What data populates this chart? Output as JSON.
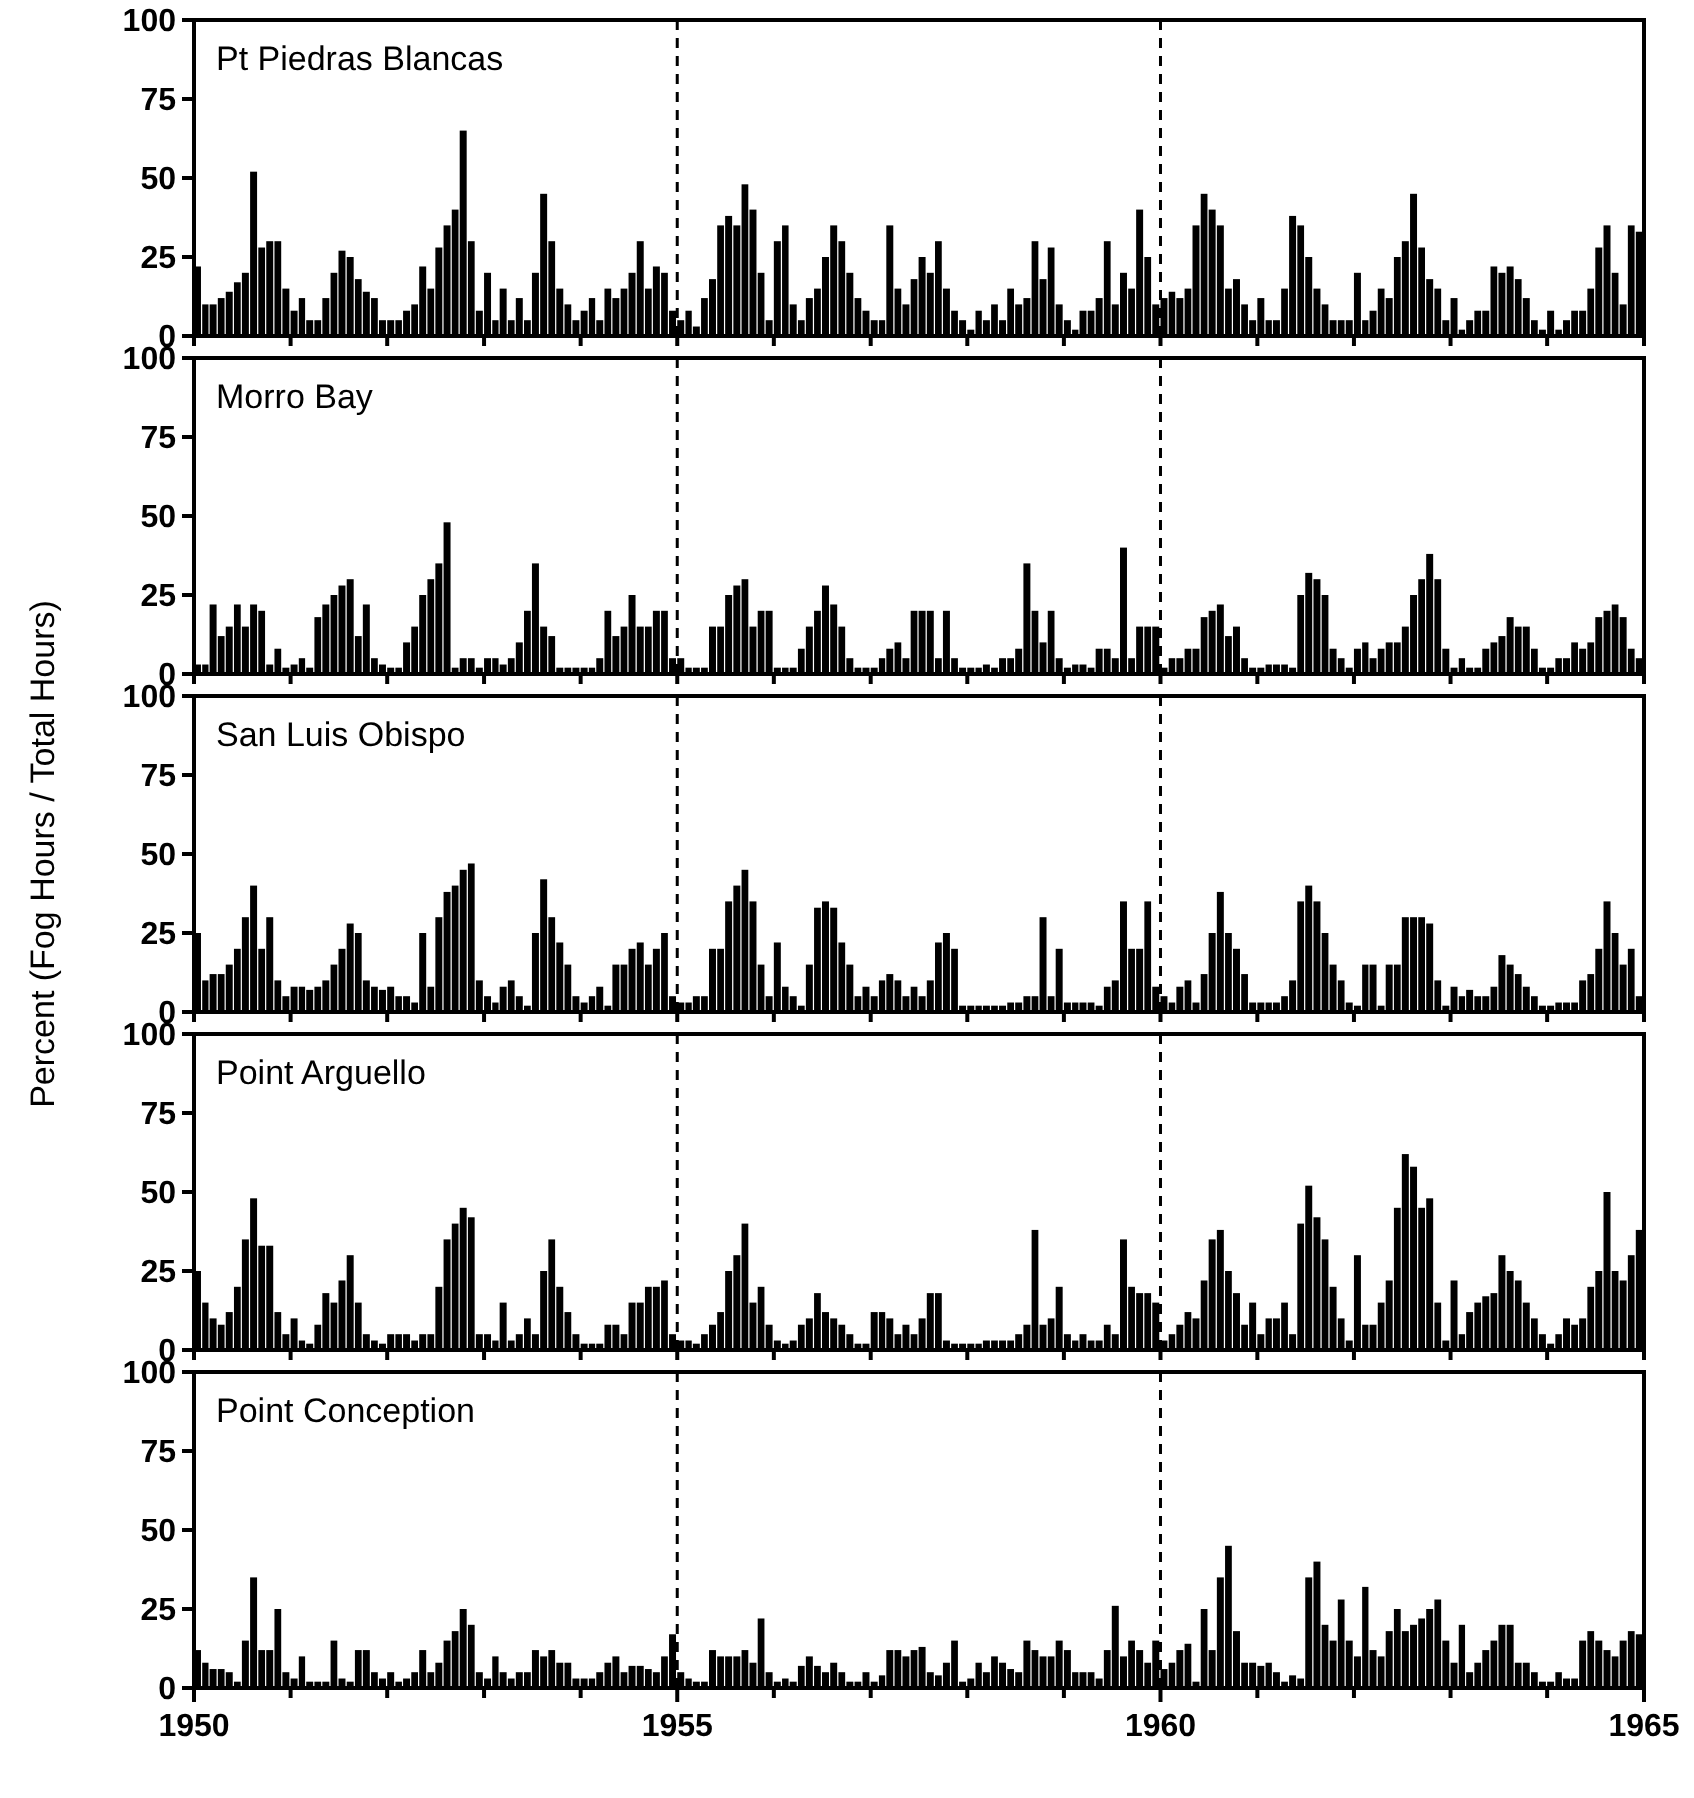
{
  "chart_data": [
    {
      "type": "bar",
      "title": "Pt Piedras Blancas",
      "x": [
        "1950-01",
        "1950-02",
        "1950-03",
        "1950-04",
        "1950-05",
        "1950-06",
        "1950-07",
        "1950-08",
        "1950-09",
        "1950-10",
        "1950-11",
        "1950-12",
        "1951-01",
        "1951-02",
        "1951-03",
        "1951-04",
        "1951-05",
        "1951-06",
        "1951-07",
        "1951-08",
        "1951-09",
        "1951-10",
        "1951-11",
        "1951-12",
        "1952-01",
        "1952-02",
        "1952-03",
        "1952-04",
        "1952-05",
        "1952-06",
        "1952-07",
        "1952-08",
        "1952-09",
        "1952-10",
        "1952-11",
        "1952-12",
        "1953-01",
        "1953-02",
        "1953-03",
        "1953-04",
        "1953-05",
        "1953-06",
        "1953-07",
        "1953-08",
        "1953-09",
        "1953-10",
        "1953-11",
        "1953-12",
        "1954-01",
        "1954-02",
        "1954-03",
        "1954-04",
        "1954-05",
        "1954-06",
        "1954-07",
        "1954-08",
        "1954-09",
        "1954-10",
        "1954-11",
        "1954-12",
        "1955-01",
        "1955-02",
        "1955-03",
        "1955-04",
        "1955-05",
        "1955-06",
        "1955-07",
        "1955-08",
        "1955-09",
        "1955-10",
        "1955-11",
        "1955-12",
        "1956-01",
        "1956-02",
        "1956-03",
        "1956-04",
        "1956-05",
        "1956-06",
        "1956-07",
        "1956-08",
        "1956-09",
        "1956-10",
        "1956-11",
        "1956-12",
        "1957-01",
        "1957-02",
        "1957-03",
        "1957-04",
        "1957-05",
        "1957-06",
        "1957-07",
        "1957-08",
        "1957-09",
        "1957-10",
        "1957-11",
        "1957-12",
        "1958-01",
        "1958-02",
        "1958-03",
        "1958-04",
        "1958-05",
        "1958-06",
        "1958-07",
        "1958-08",
        "1958-09",
        "1958-10",
        "1958-11",
        "1958-12",
        "1959-01",
        "1959-02",
        "1959-03",
        "1959-04",
        "1959-05",
        "1959-06",
        "1959-07",
        "1959-08",
        "1959-09",
        "1959-10",
        "1959-11",
        "1959-12",
        "1960-01",
        "1960-02",
        "1960-03",
        "1960-04",
        "1960-05",
        "1960-06",
        "1960-07",
        "1960-08",
        "1960-09",
        "1960-10",
        "1960-11",
        "1960-12",
        "1961-01",
        "1961-02",
        "1961-03",
        "1961-04",
        "1961-05",
        "1961-06",
        "1961-07",
        "1961-08",
        "1961-09",
        "1961-10",
        "1961-11",
        "1961-12",
        "1962-01",
        "1962-02",
        "1962-03",
        "1962-04",
        "1962-05",
        "1962-06",
        "1962-07",
        "1962-08",
        "1962-09",
        "1962-10",
        "1962-11",
        "1962-12",
        "1963-01",
        "1963-02",
        "1963-03",
        "1963-04",
        "1963-05",
        "1963-06",
        "1963-07",
        "1963-08",
        "1963-09",
        "1963-10",
        "1963-11",
        "1963-12",
        "1964-01",
        "1964-02",
        "1964-03",
        "1964-04",
        "1964-05",
        "1964-06",
        "1964-07",
        "1964-08",
        "1964-09",
        "1964-10",
        "1964-11",
        "1964-12"
      ],
      "values": [
        22,
        10,
        10,
        12,
        14,
        17,
        20,
        52,
        28,
        30,
        30,
        15,
        8,
        12,
        5,
        5,
        12,
        20,
        27,
        25,
        18,
        14,
        12,
        5,
        5,
        5,
        8,
        10,
        22,
        15,
        28,
        35,
        40,
        65,
        30,
        8,
        20,
        5,
        15,
        5,
        12,
        5,
        20,
        45,
        30,
        15,
        10,
        5,
        8,
        12,
        5,
        15,
        12,
        15,
        20,
        30,
        15,
        22,
        20,
        8,
        5,
        8,
        3,
        12,
        18,
        35,
        38,
        35,
        48,
        40,
        20,
        5,
        30,
        35,
        10,
        5,
        12,
        15,
        25,
        35,
        30,
        20,
        12,
        8,
        5,
        5,
        35,
        15,
        10,
        18,
        25,
        20,
        30,
        15,
        8,
        5,
        2,
        8,
        5,
        10,
        5,
        15,
        10,
        12,
        30,
        18,
        28,
        10,
        5,
        2,
        8,
        8,
        12,
        30,
        10,
        20,
        15,
        40,
        25,
        10,
        12,
        14,
        12,
        15,
        35,
        45,
        40,
        35,
        15,
        18,
        10,
        5,
        12,
        5,
        5,
        15,
        38,
        35,
        25,
        15,
        10,
        5,
        5,
        5,
        20,
        5,
        8,
        15,
        12,
        25,
        30,
        45,
        28,
        18,
        15,
        5,
        12,
        2,
        5,
        8,
        8,
        22,
        20,
        22,
        18,
        12,
        5,
        2,
        8,
        2,
        5,
        8,
        8,
        15,
        28,
        35,
        20,
        10,
        35,
        33
      ],
      "color": "#000000",
      "xlim": [
        "1950-01",
        "1965-01"
      ],
      "xticks": [
        {
          "value": "1950",
          "label": null
        },
        {
          "value": "1951",
          "label": null
        },
        {
          "value": "1952",
          "label": null
        },
        {
          "value": "1953",
          "label": null
        },
        {
          "value": "1954",
          "label": null
        },
        {
          "value": "1955",
          "label": null
        },
        {
          "value": "1956",
          "label": null
        },
        {
          "value": "1957",
          "label": null
        },
        {
          "value": "1958",
          "label": null
        },
        {
          "value": "1959",
          "label": null
        },
        {
          "value": "1960",
          "label": null
        },
        {
          "value": "1961",
          "label": null
        },
        {
          "value": "1962",
          "label": null
        },
        {
          "value": "1963",
          "label": null
        },
        {
          "value": "1964",
          "label": null
        },
        {
          "value": "1965",
          "label": null
        }
      ],
      "ylim": [
        0,
        100
      ],
      "yticks": [
        0,
        25,
        50,
        75,
        100
      ],
      "tick_labels": "y",
      "ref_lines": [
        {
          "axis": "x",
          "value": "1955",
          "line_style": "dashed"
        },
        {
          "axis": "x",
          "value": "1960",
          "line_style": "dashed"
        }
      ]
    },
    {
      "type": "bar",
      "title": "Morro Bay",
      "x": [
        "1950-01",
        "1950-02",
        "1950-03",
        "1950-04",
        "1950-05",
        "1950-06",
        "1950-07",
        "1950-08",
        "1950-09",
        "1950-10",
        "1950-11",
        "1950-12",
        "1951-01",
        "1951-02",
        "1951-03",
        "1951-04",
        "1951-05",
        "1951-06",
        "1951-07",
        "1951-08",
        "1951-09",
        "1951-10",
        "1951-11",
        "1951-12",
        "1952-01",
        "1952-02",
        "1952-03",
        "1952-04",
        "1952-05",
        "1952-06",
        "1952-07",
        "1952-08",
        "1952-09",
        "1952-10",
        "1952-11",
        "1952-12",
        "1953-01",
        "1953-02",
        "1953-03",
        "1953-04",
        "1953-05",
        "1953-06",
        "1953-07",
        "1953-08",
        "1953-09",
        "1953-10",
        "1953-11",
        "1953-12",
        "1954-01",
        "1954-02",
        "1954-03",
        "1954-04",
        "1954-05",
        "1954-06",
        "1954-07",
        "1954-08",
        "1954-09",
        "1954-10",
        "1954-11",
        "1954-12",
        "1955-01",
        "1955-02",
        "1955-03",
        "1955-04",
        "1955-05",
        "1955-06",
        "1955-07",
        "1955-08",
        "1955-09",
        "1955-10",
        "1955-11",
        "1955-12",
        "1956-01",
        "1956-02",
        "1956-03",
        "1956-04",
        "1956-05",
        "1956-06",
        "1956-07",
        "1956-08",
        "1956-09",
        "1956-10",
        "1956-11",
        "1956-12",
        "1957-01",
        "1957-02",
        "1957-03",
        "1957-04",
        "1957-05",
        "1957-06",
        "1957-07",
        "1957-08",
        "1957-09",
        "1957-10",
        "1957-11",
        "1957-12",
        "1958-01",
        "1958-02",
        "1958-03",
        "1958-04",
        "1958-05",
        "1958-06",
        "1958-07",
        "1958-08",
        "1958-09",
        "1958-10",
        "1958-11",
        "1958-12",
        "1959-01",
        "1959-02",
        "1959-03",
        "1959-04",
        "1959-05",
        "1959-06",
        "1959-07",
        "1959-08",
        "1959-09",
        "1959-10",
        "1959-11",
        "1959-12",
        "1960-01",
        "1960-02",
        "1960-03",
        "1960-04",
        "1960-05",
        "1960-06",
        "1960-07",
        "1960-08",
        "1960-09",
        "1960-10",
        "1960-11",
        "1960-12",
        "1961-01",
        "1961-02",
        "1961-03",
        "1961-04",
        "1961-05",
        "1961-06",
        "1961-07",
        "1961-08",
        "1961-09",
        "1961-10",
        "1961-11",
        "1961-12",
        "1962-01",
        "1962-02",
        "1962-03",
        "1962-04",
        "1962-05",
        "1962-06",
        "1962-07",
        "1962-08",
        "1962-09",
        "1962-10",
        "1962-11",
        "1962-12",
        "1963-01",
        "1963-02",
        "1963-03",
        "1963-04",
        "1963-05",
        "1963-06",
        "1963-07",
        "1963-08",
        "1963-09",
        "1963-10",
        "1963-11",
        "1963-12",
        "1964-01",
        "1964-02",
        "1964-03",
        "1964-04",
        "1964-05",
        "1964-06",
        "1964-07",
        "1964-08",
        "1964-09",
        "1964-10",
        "1964-11",
        "1964-12"
      ],
      "values": [
        3,
        3,
        22,
        12,
        15,
        22,
        15,
        22,
        20,
        3,
        8,
        2,
        3,
        5,
        2,
        18,
        22,
        25,
        28,
        30,
        12,
        22,
        5,
        3,
        2,
        2,
        10,
        15,
        25,
        30,
        35,
        48,
        2,
        5,
        5,
        2,
        5,
        5,
        3,
        5,
        10,
        20,
        35,
        15,
        12,
        2,
        2,
        2,
        2,
        2,
        5,
        20,
        12,
        15,
        25,
        15,
        15,
        20,
        20,
        5,
        5,
        2,
        2,
        2,
        15,
        15,
        25,
        28,
        30,
        15,
        20,
        20,
        2,
        2,
        2,
        8,
        15,
        20,
        28,
        22,
        15,
        5,
        2,
        2,
        2,
        5,
        8,
        10,
        5,
        20,
        20,
        20,
        5,
        20,
        5,
        2,
        2,
        2,
        3,
        2,
        5,
        5,
        8,
        35,
        20,
        10,
        20,
        5,
        2,
        3,
        3,
        2,
        8,
        8,
        5,
        40,
        5,
        15,
        15,
        15,
        2,
        5,
        5,
        8,
        8,
        18,
        20,
        22,
        12,
        15,
        5,
        2,
        2,
        3,
        3,
        3,
        2,
        25,
        32,
        30,
        25,
        8,
        5,
        2,
        8,
        10,
        5,
        8,
        10,
        10,
        15,
        25,
        30,
        38,
        30,
        8,
        2,
        5,
        2,
        2,
        8,
        10,
        12,
        18,
        15,
        15,
        8,
        2,
        2,
        5,
        5,
        10,
        8,
        10,
        18,
        20,
        22,
        18,
        8,
        5
      ],
      "color": "#000000",
      "xlim": [
        "1950-01",
        "1965-01"
      ],
      "xticks": [
        {
          "value": "1950",
          "label": null
        },
        {
          "value": "1951",
          "label": null
        },
        {
          "value": "1952",
          "label": null
        },
        {
          "value": "1953",
          "label": null
        },
        {
          "value": "1954",
          "label": null
        },
        {
          "value": "1955",
          "label": null
        },
        {
          "value": "1956",
          "label": null
        },
        {
          "value": "1957",
          "label": null
        },
        {
          "value": "1958",
          "label": null
        },
        {
          "value": "1959",
          "label": null
        },
        {
          "value": "1960",
          "label": null
        },
        {
          "value": "1961",
          "label": null
        },
        {
          "value": "1962",
          "label": null
        },
        {
          "value": "1963",
          "label": null
        },
        {
          "value": "1964",
          "label": null
        },
        {
          "value": "1965",
          "label": null
        }
      ],
      "ylim": [
        0,
        100
      ],
      "yticks": [
        0,
        25,
        50,
        75,
        100
      ],
      "tick_labels": "y",
      "ref_lines": [
        {
          "axis": "x",
          "value": "1955",
          "line_style": "dashed"
        },
        {
          "axis": "x",
          "value": "1960",
          "line_style": "dashed"
        }
      ]
    },
    {
      "type": "bar",
      "title": "San Luis Obispo",
      "ylabel": "Percent (Fog Hours / Total Hours)",
      "x": [
        "1950-01",
        "1950-02",
        "1950-03",
        "1950-04",
        "1950-05",
        "1950-06",
        "1950-07",
        "1950-08",
        "1950-09",
        "1950-10",
        "1950-11",
        "1950-12",
        "1951-01",
        "1951-02",
        "1951-03",
        "1951-04",
        "1951-05",
        "1951-06",
        "1951-07",
        "1951-08",
        "1951-09",
        "1951-10",
        "1951-11",
        "1951-12",
        "1952-01",
        "1952-02",
        "1952-03",
        "1952-04",
        "1952-05",
        "1952-06",
        "1952-07",
        "1952-08",
        "1952-09",
        "1952-10",
        "1952-11",
        "1952-12",
        "1953-01",
        "1953-02",
        "1953-03",
        "1953-04",
        "1953-05",
        "1953-06",
        "1953-07",
        "1953-08",
        "1953-09",
        "1953-10",
        "1953-11",
        "1953-12",
        "1954-01",
        "1954-02",
        "1954-03",
        "1954-04",
        "1954-05",
        "1954-06",
        "1954-07",
        "1954-08",
        "1954-09",
        "1954-10",
        "1954-11",
        "1954-12",
        "1955-01",
        "1955-02",
        "1955-03",
        "1955-04",
        "1955-05",
        "1955-06",
        "1955-07",
        "1955-08",
        "1955-09",
        "1955-10",
        "1955-11",
        "1955-12",
        "1956-01",
        "1956-02",
        "1956-03",
        "1956-04",
        "1956-05",
        "1956-06",
        "1956-07",
        "1956-08",
        "1956-09",
        "1956-10",
        "1956-11",
        "1956-12",
        "1957-01",
        "1957-02",
        "1957-03",
        "1957-04",
        "1957-05",
        "1957-06",
        "1957-07",
        "1957-08",
        "1957-09",
        "1957-10",
        "1957-11",
        "1957-12",
        "1958-01",
        "1958-02",
        "1958-03",
        "1958-04",
        "1958-05",
        "1958-06",
        "1958-07",
        "1958-08",
        "1958-09",
        "1958-10",
        "1958-11",
        "1958-12",
        "1959-01",
        "1959-02",
        "1959-03",
        "1959-04",
        "1959-05",
        "1959-06",
        "1959-07",
        "1959-08",
        "1959-09",
        "1959-10",
        "1959-11",
        "1959-12",
        "1960-01",
        "1960-02",
        "1960-03",
        "1960-04",
        "1960-05",
        "1960-06",
        "1960-07",
        "1960-08",
        "1960-09",
        "1960-10",
        "1960-11",
        "1960-12",
        "1961-01",
        "1961-02",
        "1961-03",
        "1961-04",
        "1961-05",
        "1961-06",
        "1961-07",
        "1961-08",
        "1961-09",
        "1961-10",
        "1961-11",
        "1961-12",
        "1962-01",
        "1962-02",
        "1962-03",
        "1962-04",
        "1962-05",
        "1962-06",
        "1962-07",
        "1962-08",
        "1962-09",
        "1962-10",
        "1962-11",
        "1962-12",
        "1963-01",
        "1963-02",
        "1963-03",
        "1963-04",
        "1963-05",
        "1963-06",
        "1963-07",
        "1963-08",
        "1963-09",
        "1963-10",
        "1963-11",
        "1963-12",
        "1964-01",
        "1964-02",
        "1964-03",
        "1964-04",
        "1964-05",
        "1964-06",
        "1964-07",
        "1964-08",
        "1964-09",
        "1964-10",
        "1964-11",
        "1964-12"
      ],
      "values": [
        25,
        10,
        12,
        12,
        15,
        20,
        30,
        40,
        20,
        30,
        10,
        5,
        8,
        8,
        7,
        8,
        10,
        15,
        20,
        28,
        25,
        10,
        8,
        7,
        8,
        5,
        5,
        3,
        25,
        8,
        30,
        38,
        40,
        45,
        47,
        10,
        5,
        3,
        8,
        10,
        5,
        2,
        25,
        42,
        30,
        22,
        15,
        5,
        3,
        5,
        8,
        2,
        15,
        15,
        20,
        22,
        15,
        20,
        25,
        5,
        3,
        3,
        5,
        5,
        20,
        20,
        35,
        40,
        45,
        35,
        15,
        5,
        22,
        8,
        5,
        2,
        15,
        33,
        35,
        33,
        22,
        15,
        5,
        8,
        5,
        10,
        12,
        10,
        5,
        8,
        5,
        10,
        22,
        25,
        20,
        2,
        2,
        2,
        2,
        2,
        2,
        3,
        3,
        5,
        5,
        30,
        5,
        20,
        3,
        3,
        3,
        3,
        2,
        8,
        10,
        35,
        20,
        20,
        35,
        8,
        5,
        3,
        8,
        10,
        3,
        12,
        25,
        38,
        25,
        20,
        12,
        3,
        3,
        3,
        3,
        5,
        10,
        35,
        40,
        35,
        25,
        15,
        10,
        3,
        2,
        15,
        15,
        2,
        15,
        15,
        30,
        30,
        30,
        28,
        10,
        2,
        8,
        5,
        7,
        5,
        5,
        8,
        18,
        15,
        12,
        8,
        5,
        2,
        2,
        3,
        3,
        3,
        10,
        12,
        20,
        35,
        25,
        15,
        20,
        5
      ],
      "color": "#000000",
      "xlim": [
        "1950-01",
        "1965-01"
      ],
      "xticks": [
        {
          "value": "1950",
          "label": null
        },
        {
          "value": "1951",
          "label": null
        },
        {
          "value": "1952",
          "label": null
        },
        {
          "value": "1953",
          "label": null
        },
        {
          "value": "1954",
          "label": null
        },
        {
          "value": "1955",
          "label": null
        },
        {
          "value": "1956",
          "label": null
        },
        {
          "value": "1957",
          "label": null
        },
        {
          "value": "1958",
          "label": null
        },
        {
          "value": "1959",
          "label": null
        },
        {
          "value": "1960",
          "label": null
        },
        {
          "value": "1961",
          "label": null
        },
        {
          "value": "1962",
          "label": null
        },
        {
          "value": "1963",
          "label": null
        },
        {
          "value": "1964",
          "label": null
        },
        {
          "value": "1965",
          "label": null
        }
      ],
      "ylim": [
        0,
        100
      ],
      "yticks": [
        0,
        25,
        50,
        75,
        100
      ],
      "tick_labels": "y",
      "ref_lines": [
        {
          "axis": "x",
          "value": "1955",
          "line_style": "dashed"
        },
        {
          "axis": "x",
          "value": "1960",
          "line_style": "dashed"
        }
      ]
    },
    {
      "type": "bar",
      "title": "Point Arguello",
      "x": [
        "1950-01",
        "1950-02",
        "1950-03",
        "1950-04",
        "1950-05",
        "1950-06",
        "1950-07",
        "1950-08",
        "1950-09",
        "1950-10",
        "1950-11",
        "1950-12",
        "1951-01",
        "1951-02",
        "1951-03",
        "1951-04",
        "1951-05",
        "1951-06",
        "1951-07",
        "1951-08",
        "1951-09",
        "1951-10",
        "1951-11",
        "1951-12",
        "1952-01",
        "1952-02",
        "1952-03",
        "1952-04",
        "1952-05",
        "1952-06",
        "1952-07",
        "1952-08",
        "1952-09",
        "1952-10",
        "1952-11",
        "1952-12",
        "1953-01",
        "1953-02",
        "1953-03",
        "1953-04",
        "1953-05",
        "1953-06",
        "1953-07",
        "1953-08",
        "1953-09",
        "1953-10",
        "1953-11",
        "1953-12",
        "1954-01",
        "1954-02",
        "1954-03",
        "1954-04",
        "1954-05",
        "1954-06",
        "1954-07",
        "1954-08",
        "1954-09",
        "1954-10",
        "1954-11",
        "1954-12",
        "1955-01",
        "1955-02",
        "1955-03",
        "1955-04",
        "1955-05",
        "1955-06",
        "1955-07",
        "1955-08",
        "1955-09",
        "1955-10",
        "1955-11",
        "1955-12",
        "1956-01",
        "1956-02",
        "1956-03",
        "1956-04",
        "1956-05",
        "1956-06",
        "1956-07",
        "1956-08",
        "1956-09",
        "1956-10",
        "1956-11",
        "1956-12",
        "1957-01",
        "1957-02",
        "1957-03",
        "1957-04",
        "1957-05",
        "1957-06",
        "1957-07",
        "1957-08",
        "1957-09",
        "1957-10",
        "1957-11",
        "1957-12",
        "1958-01",
        "1958-02",
        "1958-03",
        "1958-04",
        "1958-05",
        "1958-06",
        "1958-07",
        "1958-08",
        "1958-09",
        "1958-10",
        "1958-11",
        "1958-12",
        "1959-01",
        "1959-02",
        "1959-03",
        "1959-04",
        "1959-05",
        "1959-06",
        "1959-07",
        "1959-08",
        "1959-09",
        "1959-10",
        "1959-11",
        "1959-12",
        "1960-01",
        "1960-02",
        "1960-03",
        "1960-04",
        "1960-05",
        "1960-06",
        "1960-07",
        "1960-08",
        "1960-09",
        "1960-10",
        "1960-11",
        "1960-12",
        "1961-01",
        "1961-02",
        "1961-03",
        "1961-04",
        "1961-05",
        "1961-06",
        "1961-07",
        "1961-08",
        "1961-09",
        "1961-10",
        "1961-11",
        "1961-12",
        "1962-01",
        "1962-02",
        "1962-03",
        "1962-04",
        "1962-05",
        "1962-06",
        "1962-07",
        "1962-08",
        "1962-09",
        "1962-10",
        "1962-11",
        "1962-12",
        "1963-01",
        "1963-02",
        "1963-03",
        "1963-04",
        "1963-05",
        "1963-06",
        "1963-07",
        "1963-08",
        "1963-09",
        "1963-10",
        "1963-11",
        "1963-12",
        "1964-01",
        "1964-02",
        "1964-03",
        "1964-04",
        "1964-05",
        "1964-06",
        "1964-07",
        "1964-08",
        "1964-09",
        "1964-10",
        "1964-11",
        "1964-12"
      ],
      "values": [
        25,
        15,
        10,
        8,
        12,
        20,
        35,
        48,
        33,
        33,
        12,
        5,
        10,
        3,
        2,
        8,
        18,
        15,
        22,
        30,
        15,
        5,
        3,
        2,
        5,
        5,
        5,
        3,
        5,
        5,
        20,
        35,
        40,
        45,
        42,
        5,
        5,
        3,
        15,
        3,
        5,
        10,
        5,
        25,
        35,
        20,
        12,
        5,
        2,
        2,
        2,
        8,
        8,
        5,
        15,
        15,
        20,
        20,
        22,
        5,
        3,
        3,
        2,
        5,
        8,
        12,
        25,
        30,
        40,
        15,
        20,
        8,
        3,
        2,
        3,
        8,
        10,
        18,
        12,
        10,
        8,
        5,
        2,
        2,
        12,
        12,
        10,
        5,
        8,
        5,
        10,
        18,
        18,
        3,
        2,
        2,
        2,
        2,
        3,
        3,
        3,
        3,
        5,
        8,
        38,
        8,
        10,
        20,
        5,
        3,
        5,
        3,
        3,
        8,
        5,
        35,
        20,
        18,
        18,
        15,
        3,
        5,
        8,
        12,
        10,
        22,
        35,
        38,
        25,
        18,
        8,
        15,
        5,
        10,
        10,
        15,
        5,
        40,
        52,
        42,
        35,
        20,
        10,
        3,
        30,
        8,
        8,
        15,
        22,
        45,
        62,
        58,
        45,
        48,
        15,
        3,
        22,
        5,
        12,
        15,
        17,
        18,
        30,
        25,
        22,
        15,
        10,
        5,
        2,
        5,
        10,
        8,
        10,
        20,
        25,
        50,
        25,
        22,
        30,
        38
      ],
      "color": "#000000",
      "xlim": [
        "1950-01",
        "1965-01"
      ],
      "xticks": [
        {
          "value": "1950",
          "label": null
        },
        {
          "value": "1951",
          "label": null
        },
        {
          "value": "1952",
          "label": null
        },
        {
          "value": "1953",
          "label": null
        },
        {
          "value": "1954",
          "label": null
        },
        {
          "value": "1955",
          "label": null
        },
        {
          "value": "1956",
          "label": null
        },
        {
          "value": "1957",
          "label": null
        },
        {
          "value": "1958",
          "label": null
        },
        {
          "value": "1959",
          "label": null
        },
        {
          "value": "1960",
          "label": null
        },
        {
          "value": "1961",
          "label": null
        },
        {
          "value": "1962",
          "label": null
        },
        {
          "value": "1963",
          "label": null
        },
        {
          "value": "1964",
          "label": null
        },
        {
          "value": "1965",
          "label": null
        }
      ],
      "ylim": [
        0,
        100
      ],
      "yticks": [
        0,
        25,
        50,
        75,
        100
      ],
      "tick_labels": "y",
      "ref_lines": [
        {
          "axis": "x",
          "value": "1955",
          "line_style": "dashed"
        },
        {
          "axis": "x",
          "value": "1960",
          "line_style": "dashed"
        }
      ]
    },
    {
      "type": "bar",
      "title": "Point Conception",
      "x": [
        "1950-01",
        "1950-02",
        "1950-03",
        "1950-04",
        "1950-05",
        "1950-06",
        "1950-07",
        "1950-08",
        "1950-09",
        "1950-10",
        "1950-11",
        "1950-12",
        "1951-01",
        "1951-02",
        "1951-03",
        "1951-04",
        "1951-05",
        "1951-06",
        "1951-07",
        "1951-08",
        "1951-09",
        "1951-10",
        "1951-11",
        "1951-12",
        "1952-01",
        "1952-02",
        "1952-03",
        "1952-04",
        "1952-05",
        "1952-06",
        "1952-07",
        "1952-08",
        "1952-09",
        "1952-10",
        "1952-11",
        "1952-12",
        "1953-01",
        "1953-02",
        "1953-03",
        "1953-04",
        "1953-05",
        "1953-06",
        "1953-07",
        "1953-08",
        "1953-09",
        "1953-10",
        "1953-11",
        "1953-12",
        "1954-01",
        "1954-02",
        "1954-03",
        "1954-04",
        "1954-05",
        "1954-06",
        "1954-07",
        "1954-08",
        "1954-09",
        "1954-10",
        "1954-11",
        "1954-12",
        "1955-01",
        "1955-02",
        "1955-03",
        "1955-04",
        "1955-05",
        "1955-06",
        "1955-07",
        "1955-08",
        "1955-09",
        "1955-10",
        "1955-11",
        "1955-12",
        "1956-01",
        "1956-02",
        "1956-03",
        "1956-04",
        "1956-05",
        "1956-06",
        "1956-07",
        "1956-08",
        "1956-09",
        "1956-10",
        "1956-11",
        "1956-12",
        "1957-01",
        "1957-02",
        "1957-03",
        "1957-04",
        "1957-05",
        "1957-06",
        "1957-07",
        "1957-08",
        "1957-09",
        "1957-10",
        "1957-11",
        "1957-12",
        "1958-01",
        "1958-02",
        "1958-03",
        "1958-04",
        "1958-05",
        "1958-06",
        "1958-07",
        "1958-08",
        "1958-09",
        "1958-10",
        "1958-11",
        "1958-12",
        "1959-01",
        "1959-02",
        "1959-03",
        "1959-04",
        "1959-05",
        "1959-06",
        "1959-07",
        "1959-08",
        "1959-09",
        "1959-10",
        "1959-11",
        "1959-12",
        "1960-01",
        "1960-02",
        "1960-03",
        "1960-04",
        "1960-05",
        "1960-06",
        "1960-07",
        "1960-08",
        "1960-09",
        "1960-10",
        "1960-11",
        "1960-12",
        "1961-01",
        "1961-02",
        "1961-03",
        "1961-04",
        "1961-05",
        "1961-06",
        "1961-07",
        "1961-08",
        "1961-09",
        "1961-10",
        "1961-11",
        "1961-12",
        "1962-01",
        "1962-02",
        "1962-03",
        "1962-04",
        "1962-05",
        "1962-06",
        "1962-07",
        "1962-08",
        "1962-09",
        "1962-10",
        "1962-11",
        "1962-12",
        "1963-01",
        "1963-02",
        "1963-03",
        "1963-04",
        "1963-05",
        "1963-06",
        "1963-07",
        "1963-08",
        "1963-09",
        "1963-10",
        "1963-11",
        "1963-12",
        "1964-01",
        "1964-02",
        "1964-03",
        "1964-04",
        "1964-05",
        "1964-06",
        "1964-07",
        "1964-08",
        "1964-09",
        "1964-10",
        "1964-11",
        "1964-12"
      ],
      "values": [
        12,
        8,
        6,
        6,
        5,
        2,
        15,
        35,
        12,
        12,
        25,
        5,
        3,
        10,
        2,
        2,
        2,
        15,
        3,
        2,
        12,
        12,
        5,
        3,
        5,
        2,
        3,
        5,
        12,
        5,
        8,
        15,
        18,
        25,
        20,
        5,
        3,
        10,
        5,
        3,
        5,
        5,
        12,
        10,
        12,
        8,
        8,
        3,
        3,
        3,
        5,
        8,
        10,
        5,
        7,
        7,
        6,
        5,
        10,
        17,
        5,
        3,
        2,
        2,
        12,
        10,
        10,
        10,
        12,
        8,
        22,
        5,
        2,
        3,
        2,
        7,
        10,
        7,
        5,
        8,
        5,
        2,
        2,
        5,
        2,
        4,
        12,
        12,
        10,
        12,
        13,
        5,
        4,
        8,
        15,
        2,
        3,
        8,
        5,
        10,
        8,
        6,
        5,
        15,
        12,
        10,
        10,
        15,
        12,
        5,
        5,
        5,
        3,
        12,
        26,
        10,
        15,
        12,
        8,
        15,
        6,
        8,
        12,
        14,
        2,
        25,
        12,
        35,
        45,
        18,
        8,
        8,
        7,
        8,
        5,
        2,
        4,
        3,
        35,
        40,
        20,
        15,
        28,
        15,
        10,
        32,
        12,
        10,
        18,
        25,
        18,
        20,
        22,
        25,
        28,
        15,
        8,
        20,
        5,
        8,
        12,
        15,
        20,
        20,
        8,
        8,
        5,
        2,
        2,
        5,
        3,
        3,
        15,
        18,
        15,
        12,
        10,
        15,
        18,
        17
      ],
      "color": "#000000",
      "xlim": [
        "1950-01",
        "1965-01"
      ],
      "xticks": [
        {
          "value": "1950",
          "label": "1950"
        },
        {
          "value": "1951",
          "label": null
        },
        {
          "value": "1952",
          "label": null
        },
        {
          "value": "1953",
          "label": null
        },
        {
          "value": "1954",
          "label": null
        },
        {
          "value": "1955",
          "label": "1955"
        },
        {
          "value": "1956",
          "label": null
        },
        {
          "value": "1957",
          "label": null
        },
        {
          "value": "1958",
          "label": null
        },
        {
          "value": "1959",
          "label": null
        },
        {
          "value": "1960",
          "label": "1960"
        },
        {
          "value": "1961",
          "label": null
        },
        {
          "value": "1962",
          "label": null
        },
        {
          "value": "1963",
          "label": null
        },
        {
          "value": "1964",
          "label": null
        },
        {
          "value": "1965",
          "label": "1965"
        }
      ],
      "ylim": [
        0,
        100
      ],
      "yticks": [
        0,
        25,
        50,
        75,
        100
      ],
      "ref_lines": [
        {
          "axis": "x",
          "value": "1955",
          "line_style": "dashed"
        },
        {
          "axis": "x",
          "value": "1960",
          "line_style": "dashed"
        }
      ]
    }
  ]
}
